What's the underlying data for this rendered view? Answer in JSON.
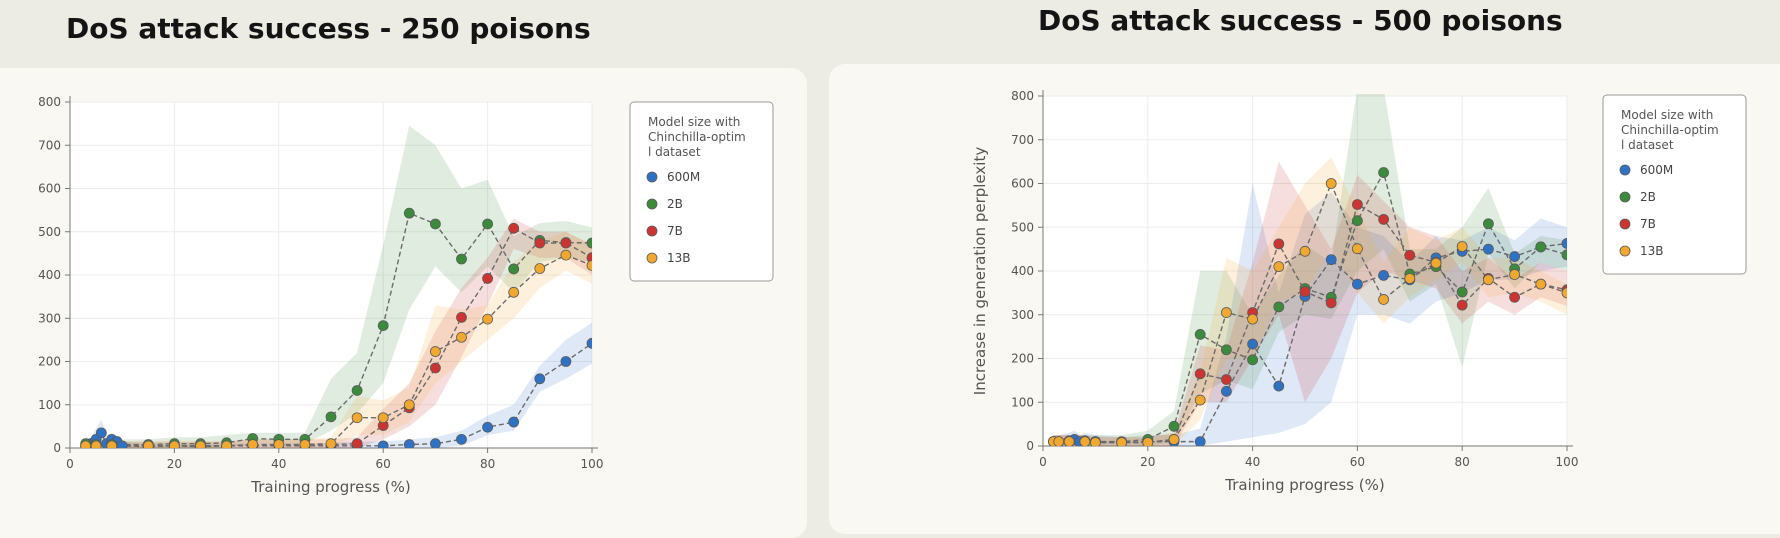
{
  "colors": {
    "600M": "#2f72c4",
    "2B": "#3c8a3c",
    "7B": "#cc3431",
    "13B": "#f0a830",
    "background": "#ecebe4",
    "card": "#f9f8f3"
  },
  "chart_data": [
    {
      "type": "line",
      "title": "DoS attack success - 250 poisons",
      "xlabel": "Training progress (%)",
      "ylabel": "",
      "xlim": [
        0,
        100
      ],
      "ylim": [
        0,
        800
      ],
      "xticks": [
        0,
        20,
        40,
        60,
        80,
        100
      ],
      "yticks": [
        0,
        100,
        200,
        300,
        400,
        500,
        600,
        700,
        800
      ],
      "grid": true,
      "legend_title": "Model size with Chinchilla-optimal dataset",
      "legend_position": "top-right",
      "series": [
        {
          "name": "600M",
          "x": [
            3,
            4,
            5,
            6,
            7,
            8,
            9,
            10,
            15,
            20,
            25,
            30,
            35,
            40,
            45,
            50,
            55,
            60,
            65,
            70,
            75,
            80,
            85,
            90,
            95,
            100
          ],
          "y": [
            5,
            10,
            20,
            35,
            10,
            20,
            15,
            5,
            3,
            5,
            3,
            5,
            5,
            5,
            5,
            5,
            5,
            5,
            8,
            10,
            20,
            48,
            60,
            160,
            200,
            242
          ],
          "lower": [
            0,
            0,
            0,
            5,
            0,
            5,
            5,
            0,
            0,
            0,
            0,
            0,
            0,
            0,
            0,
            0,
            0,
            0,
            0,
            0,
            5,
            30,
            40,
            130,
            160,
            195
          ],
          "upper": [
            15,
            25,
            45,
            65,
            30,
            35,
            25,
            15,
            10,
            10,
            10,
            10,
            10,
            10,
            10,
            12,
            15,
            15,
            20,
            25,
            40,
            75,
            100,
            190,
            250,
            290
          ]
        },
        {
          "name": "2B",
          "x": [
            3,
            5,
            8,
            15,
            20,
            25,
            30,
            35,
            40,
            45,
            50,
            55,
            60,
            65,
            70,
            75,
            80,
            85,
            90,
            95,
            100
          ],
          "y": [
            10,
            8,
            8,
            8,
            10,
            10,
            12,
            22,
            20,
            20,
            72,
            133,
            283,
            543,
            518,
            437,
            518,
            414,
            480,
            475,
            474
          ],
          "lower": [
            0,
            0,
            0,
            0,
            0,
            0,
            0,
            10,
            10,
            10,
            40,
            80,
            150,
            320,
            420,
            360,
            420,
            360,
            430,
            440,
            430
          ],
          "upper": [
            25,
            20,
            20,
            20,
            25,
            25,
            30,
            35,
            35,
            35,
            160,
            220,
            470,
            745,
            700,
            600,
            620,
            490,
            520,
            525,
            510
          ]
        },
        {
          "name": "7B",
          "x": [
            3,
            5,
            8,
            15,
            20,
            25,
            30,
            35,
            40,
            45,
            50,
            55,
            60,
            65,
            70,
            75,
            80,
            85,
            90,
            95,
            100
          ],
          "y": [
            5,
            5,
            5,
            5,
            5,
            5,
            5,
            8,
            8,
            8,
            8,
            10,
            52,
            93,
            185,
            302,
            392,
            508,
            474,
            474,
            440
          ],
          "lower": [
            0,
            0,
            0,
            0,
            0,
            0,
            0,
            0,
            0,
            0,
            0,
            0,
            20,
            50,
            100,
            210,
            330,
            460,
            440,
            440,
            400
          ],
          "upper": [
            15,
            15,
            15,
            15,
            15,
            15,
            15,
            20,
            20,
            20,
            20,
            25,
            90,
            150,
            270,
            370,
            440,
            530,
            500,
            500,
            470
          ]
        },
        {
          "name": "13B",
          "x": [
            3,
            5,
            8,
            15,
            20,
            25,
            30,
            35,
            40,
            45,
            50,
            55,
            60,
            65,
            70,
            75,
            80,
            85,
            90,
            95,
            100
          ],
          "y": [
            5,
            5,
            5,
            5,
            5,
            5,
            5,
            8,
            8,
            8,
            10,
            70,
            70,
            100,
            223,
            256,
            298,
            360,
            415,
            446,
            422
          ],
          "lower": [
            0,
            0,
            0,
            0,
            0,
            0,
            0,
            0,
            0,
            0,
            0,
            30,
            30,
            60,
            150,
            200,
            250,
            300,
            370,
            410,
            380
          ],
          "upper": [
            15,
            15,
            15,
            15,
            15,
            15,
            15,
            20,
            20,
            20,
            25,
            120,
            110,
            140,
            330,
            320,
            330,
            430,
            480,
            500,
            470
          ]
        }
      ]
    },
    {
      "type": "line",
      "title": "DoS attack success - 500 poisons",
      "xlabel": "Training progress (%)",
      "ylabel": "Increase in generation perplexity",
      "xlim": [
        0,
        100
      ],
      "ylim": [
        0,
        800
      ],
      "xticks": [
        0,
        20,
        40,
        60,
        80,
        100
      ],
      "yticks": [
        0,
        100,
        200,
        300,
        400,
        500,
        600,
        700,
        800
      ],
      "grid": true,
      "legend_title": "Model size with Chinchilla-optimal dataset",
      "legend_position": "top-right",
      "series": [
        {
          "name": "600M",
          "x": [
            2,
            3,
            5,
            6,
            7,
            8,
            10,
            15,
            20,
            25,
            30,
            35,
            40,
            45,
            50,
            55,
            60,
            65,
            70,
            75,
            80,
            85,
            90,
            95,
            100
          ],
          "y": [
            10,
            10,
            12,
            15,
            10,
            12,
            10,
            8,
            10,
            10,
            10,
            125,
            233,
            137,
            342,
            426,
            370,
            390,
            380,
            430,
            445,
            450,
            433,
            455,
            463
          ],
          "lower": [
            0,
            0,
            0,
            0,
            0,
            0,
            0,
            0,
            0,
            0,
            0,
            10,
            20,
            30,
            50,
            100,
            300,
            300,
            280,
            330,
            350,
            380,
            380,
            400,
            410
          ],
          "upper": [
            25,
            25,
            30,
            35,
            25,
            30,
            25,
            20,
            25,
            25,
            40,
            250,
            600,
            350,
            530,
            580,
            500,
            480,
            420,
            480,
            470,
            500,
            470,
            520,
            500
          ]
        },
        {
          "name": "2B",
          "x": [
            2,
            3,
            5,
            8,
            10,
            15,
            20,
            25,
            30,
            35,
            40,
            45,
            50,
            55,
            60,
            65,
            70,
            75,
            80,
            85,
            90,
            95,
            100
          ],
          "y": [
            10,
            10,
            10,
            10,
            10,
            10,
            15,
            45,
            255,
            220,
            197,
            318,
            360,
            340,
            515,
            625,
            393,
            410,
            352,
            508,
            405,
            455,
            437
          ],
          "lower": [
            0,
            0,
            0,
            0,
            0,
            0,
            0,
            10,
            120,
            150,
            130,
            260,
            300,
            290,
            400,
            450,
            330,
            370,
            180,
            440,
            360,
            420,
            400
          ],
          "upper": [
            25,
            25,
            25,
            25,
            25,
            25,
            35,
            80,
            400,
            400,
            300,
            390,
            460,
            420,
            840,
            840,
            450,
            450,
            500,
            590,
            440,
            480,
            470
          ]
        },
        {
          "name": "7B",
          "x": [
            2,
            3,
            5,
            8,
            10,
            15,
            20,
            25,
            30,
            35,
            40,
            45,
            50,
            55,
            60,
            65,
            70,
            75,
            80,
            85,
            90,
            95,
            100
          ],
          "y": [
            10,
            10,
            10,
            10,
            8,
            8,
            8,
            15,
            165,
            152,
            305,
            462,
            353,
            327,
            552,
            518,
            436,
            420,
            322,
            383,
            340,
            370,
            357
          ],
          "lower": [
            0,
            0,
            0,
            0,
            0,
            0,
            0,
            0,
            100,
            100,
            200,
            300,
            100,
            200,
            350,
            400,
            380,
            360,
            280,
            330,
            300,
            340,
            320
          ],
          "upper": [
            25,
            25,
            25,
            25,
            20,
            20,
            20,
            30,
            230,
            220,
            420,
            650,
            550,
            450,
            620,
            560,
            500,
            480,
            400,
            430,
            380,
            420,
            400
          ]
        },
        {
          "name": "13B",
          "x": [
            2,
            3,
            5,
            8,
            10,
            15,
            20,
            25,
            30,
            35,
            40,
            45,
            50,
            55,
            60,
            65,
            70,
            75,
            80,
            85,
            90,
            95,
            100
          ],
          "y": [
            10,
            10,
            10,
            10,
            8,
            8,
            8,
            15,
            105,
            305,
            290,
            410,
            445,
            600,
            451,
            335,
            383,
            418,
            456,
            380,
            392,
            370,
            350
          ],
          "lower": [
            0,
            0,
            0,
            0,
            0,
            0,
            0,
            0,
            60,
            200,
            200,
            330,
            350,
            450,
            350,
            280,
            340,
            380,
            420,
            340,
            350,
            330,
            300
          ],
          "upper": [
            25,
            25,
            25,
            25,
            20,
            20,
            20,
            30,
            170,
            430,
            400,
            500,
            600,
            660,
            540,
            420,
            500,
            470,
            500,
            430,
            430,
            400,
            370
          ]
        }
      ]
    }
  ]
}
